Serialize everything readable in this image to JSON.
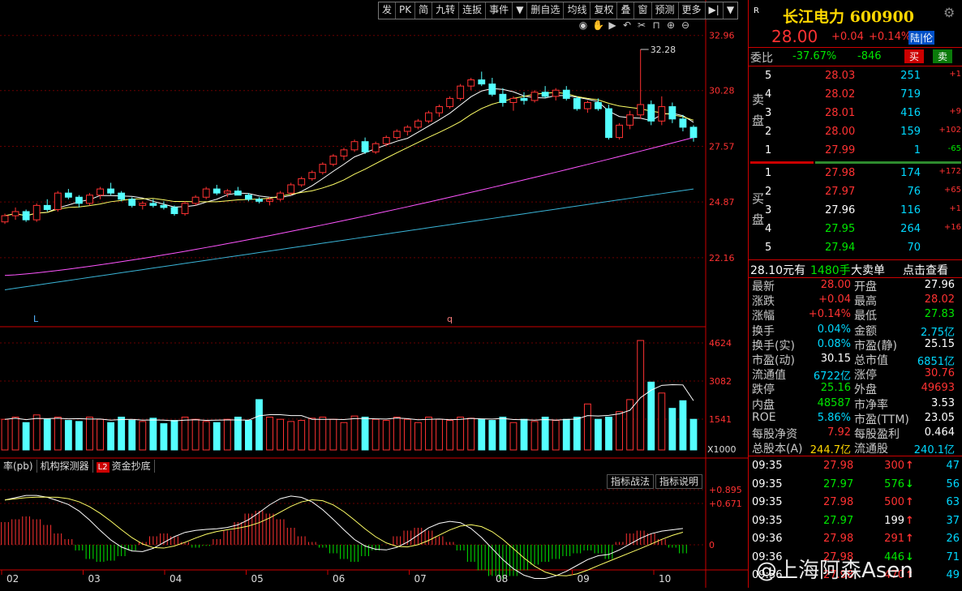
{
  "toolbar": [
    "发",
    "PK",
    "简",
    "九转",
    "连扳",
    "事件",
    "▼",
    "删自选",
    "均线",
    "复权",
    "叠",
    "窗",
    "预测",
    "更多",
    "▶|",
    "▼"
  ],
  "chart_data": {
    "type": "candlestick",
    "price_axis": [
      "32.96",
      "30.28",
      "27.57",
      "24.87",
      "22.16"
    ],
    "price_ylim": [
      20.5,
      33.5
    ],
    "peak_label": "32.28",
    "marks": [
      "L",
      "q"
    ],
    "volume_axis": [
      "4624",
      "3082",
      "1541",
      "X1000"
    ],
    "macd_axis": [
      "+0.895",
      "+0.671",
      "0"
    ],
    "months": [
      "02",
      "03",
      "04",
      "05",
      "06",
      "07",
      "08",
      "09",
      "10"
    ],
    "candles": [
      [
        23.9,
        24.3,
        23.8,
        24.2
      ],
      [
        24.2,
        24.6,
        24.0,
        24.4
      ],
      [
        24.4,
        24.5,
        23.9,
        24.0
      ],
      [
        24.0,
        24.8,
        23.9,
        24.7
      ],
      [
        24.7,
        25.0,
        24.4,
        24.5
      ],
      [
        24.5,
        25.4,
        24.4,
        25.3
      ],
      [
        25.3,
        25.5,
        25.0,
        25.1
      ],
      [
        25.1,
        25.2,
        24.6,
        24.8
      ],
      [
        24.8,
        25.3,
        24.7,
        25.2
      ],
      [
        25.2,
        25.6,
        25.0,
        25.5
      ],
      [
        25.5,
        25.8,
        25.2,
        25.3
      ],
      [
        25.3,
        25.4,
        24.9,
        25.0
      ],
      [
        25.0,
        25.1,
        24.6,
        24.7
      ],
      [
        24.7,
        24.9,
        24.5,
        24.8
      ],
      [
        24.8,
        25.0,
        24.6,
        24.7
      ],
      [
        24.7,
        24.9,
        24.5,
        24.6
      ],
      [
        24.6,
        24.7,
        24.2,
        24.3
      ],
      [
        24.3,
        24.9,
        24.2,
        24.8
      ],
      [
        24.8,
        25.2,
        24.7,
        25.1
      ],
      [
        25.1,
        25.6,
        25.0,
        25.5
      ],
      [
        25.5,
        25.7,
        25.2,
        25.3
      ],
      [
        25.3,
        25.5,
        25.1,
        25.4
      ],
      [
        25.4,
        25.6,
        25.2,
        25.2
      ],
      [
        25.2,
        25.3,
        24.9,
        25.0
      ],
      [
        25.0,
        25.1,
        24.8,
        24.9
      ],
      [
        24.9,
        25.1,
        24.7,
        25.0
      ],
      [
        25.0,
        25.4,
        24.9,
        25.3
      ],
      [
        25.3,
        25.8,
        25.2,
        25.7
      ],
      [
        25.7,
        26.1,
        25.6,
        26.0
      ],
      [
        26.0,
        26.4,
        25.9,
        26.3
      ],
      [
        26.3,
        26.8,
        26.2,
        26.7
      ],
      [
        26.7,
        27.2,
        26.6,
        27.1
      ],
      [
        27.1,
        27.5,
        26.9,
        27.4
      ],
      [
        27.4,
        27.9,
        27.3,
        27.8
      ],
      [
        27.8,
        28.0,
        27.2,
        27.3
      ],
      [
        27.3,
        27.8,
        27.2,
        27.7
      ],
      [
        27.7,
        28.1,
        27.6,
        28.0
      ],
      [
        28.0,
        28.4,
        27.9,
        28.3
      ],
      [
        28.3,
        28.6,
        28.1,
        28.5
      ],
      [
        28.5,
        28.9,
        28.4,
        28.8
      ],
      [
        28.8,
        29.3,
        28.7,
        29.2
      ],
      [
        29.2,
        29.6,
        29.0,
        29.5
      ],
      [
        29.5,
        30.0,
        29.4,
        29.9
      ],
      [
        29.9,
        30.6,
        29.8,
        30.5
      ],
      [
        30.5,
        30.9,
        30.3,
        30.8
      ],
      [
        30.8,
        31.2,
        30.5,
        30.6
      ],
      [
        30.6,
        30.9,
        30.0,
        30.1
      ],
      [
        30.1,
        30.4,
        29.5,
        29.7
      ],
      [
        29.7,
        30.0,
        29.3,
        29.9
      ],
      [
        29.9,
        30.2,
        29.6,
        29.8
      ],
      [
        29.8,
        30.3,
        29.7,
        30.2
      ],
      [
        30.2,
        30.5,
        29.9,
        30.0
      ],
      [
        30.0,
        30.4,
        29.8,
        30.3
      ],
      [
        30.3,
        30.5,
        29.8,
        29.9
      ],
      [
        29.9,
        30.0,
        29.3,
        29.4
      ],
      [
        29.4,
        29.8,
        29.2,
        29.7
      ],
      [
        29.7,
        29.9,
        29.3,
        29.4
      ],
      [
        29.4,
        29.6,
        27.9,
        28.0
      ],
      [
        28.0,
        28.7,
        27.9,
        28.6
      ],
      [
        28.6,
        29.3,
        28.4,
        29.1
      ],
      [
        29.1,
        32.28,
        28.9,
        29.6
      ],
      [
        29.6,
        29.8,
        28.6,
        28.8
      ],
      [
        28.8,
        30.0,
        28.6,
        29.5
      ],
      [
        29.5,
        29.7,
        28.7,
        28.9
      ],
      [
        28.9,
        29.1,
        28.3,
        28.5
      ],
      [
        28.5,
        28.6,
        27.8,
        28.0
      ]
    ],
    "volumes": [
      0.28,
      0.3,
      0.25,
      0.32,
      0.28,
      0.3,
      0.27,
      0.26,
      0.3,
      0.28,
      0.25,
      0.3,
      0.27,
      0.26,
      0.29,
      0.24,
      0.27,
      0.3,
      0.28,
      0.26,
      0.25,
      0.28,
      0.3,
      0.27,
      0.46,
      0.3,
      0.28,
      0.26,
      0.27,
      0.29,
      0.3,
      0.28,
      0.25,
      0.31,
      0.3,
      0.28,
      0.27,
      0.3,
      0.28,
      0.25,
      0.3,
      0.28,
      0.27,
      0.3,
      0.29,
      0.28,
      0.27,
      0.3,
      0.25,
      0.28,
      0.26,
      0.3,
      0.27,
      0.28,
      0.3,
      0.42,
      0.28,
      0.3,
      0.35,
      0.46,
      1.0,
      0.62,
      0.52,
      0.38,
      0.45,
      0.28
    ],
    "macd_hist": [
      0.4,
      0.45,
      0.5,
      0.45,
      0.35,
      0.2,
      0.1,
      -0.1,
      -0.25,
      -0.3,
      -0.28,
      -0.2,
      -0.1,
      0.05,
      0.15,
      0.2,
      0.15,
      0.05,
      -0.05,
      -0.02,
      0.1,
      0.25,
      0.4,
      0.55,
      0.6,
      0.55,
      0.45,
      0.3,
      0.15,
      0.05,
      -0.05,
      -0.15,
      -0.25,
      -0.3,
      -0.2,
      -0.1,
      0.0,
      0.15,
      0.25,
      0.3,
      0.25,
      0.15,
      0.05,
      -0.1,
      -0.3,
      -0.45,
      -0.55,
      -0.6,
      -0.55,
      -0.45,
      -0.35,
      -0.3,
      -0.25,
      -0.2,
      -0.15,
      -0.1,
      -0.15,
      -0.25,
      0.05,
      0.2,
      0.25,
      0.2,
      0.1,
      -0.05,
      -0.15
    ]
  },
  "sub_tabs": [
    "率(pb)",
    "机构探测器",
    "L2",
    "资金抄底"
  ],
  "indicator_buttons": [
    "指标战法",
    "指标说明"
  ],
  "stock": {
    "badge": "R",
    "name": "长江电力 600900",
    "price": "28.00",
    "change": "+0.04",
    "pct": "+0.14%",
    "tag": "陆|伦"
  },
  "commission": {
    "label": "委比",
    "ratio": "-37.67%",
    "diff": "-846",
    "buy": "买",
    "sell": "卖"
  },
  "sell_label": "卖盘",
  "buy_label": "买盘",
  "asks": [
    {
      "lvl": "5",
      "price": "28.03",
      "vol": "251",
      "chg": "+1"
    },
    {
      "lvl": "4",
      "price": "28.02",
      "vol": "719",
      "chg": ""
    },
    {
      "lvl": "3",
      "price": "28.01",
      "vol": "416",
      "chg": "+9"
    },
    {
      "lvl": "2",
      "price": "28.00",
      "vol": "159",
      "chg": "+102"
    },
    {
      "lvl": "1",
      "price": "27.99",
      "vol": "1",
      "chg": "-65"
    }
  ],
  "bids": [
    {
      "lvl": "1",
      "price": "27.98",
      "vol": "174",
      "chg": "+172"
    },
    {
      "lvl": "2",
      "price": "27.97",
      "vol": "76",
      "chg": "+65"
    },
    {
      "lvl": "3",
      "price": "27.96",
      "vol": "116",
      "chg": "+1"
    },
    {
      "lvl": "4",
      "price": "27.95",
      "vol": "264",
      "chg": "+16"
    },
    {
      "lvl": "5",
      "price": "27.94",
      "vol": "70",
      "chg": ""
    }
  ],
  "big_order": {
    "price": "28.10元有",
    "vol": "1480手",
    "label": "大卖单",
    "link": "点击查看"
  },
  "quote": [
    [
      "最新",
      "28.00",
      "开盘",
      "27.96"
    ],
    [
      "涨跌",
      "+0.04",
      "最高",
      "28.02"
    ],
    [
      "涨幅",
      "+0.14%",
      "最低",
      "27.83"
    ],
    [
      "换手",
      "0.04%",
      "金额",
      "2.75亿"
    ],
    [
      "换手(实)",
      "0.08%",
      "市盈(静)",
      "25.15"
    ],
    [
      "市盈(动)",
      "30.15",
      "总市值",
      "6851亿"
    ],
    [
      "流通值",
      "6722亿",
      "涨停",
      "30.76"
    ],
    [
      "跌停",
      "25.16",
      "外盘",
      "49693"
    ],
    [
      "内盘",
      "48587",
      "市净率",
      "3.53"
    ],
    [
      "ROE",
      "5.86%",
      "市盈(TTM)",
      "23.05"
    ],
    [
      "每股净资",
      "7.92",
      "每股盈利",
      "0.464"
    ],
    [
      "总股本(A)",
      "244.7亿",
      "流通股",
      "240.1亿"
    ]
  ],
  "ticks": [
    {
      "time": "09:35",
      "price": "27.98",
      "vol": "300",
      "dir": "↑",
      "n": "47"
    },
    {
      "time": "09:35",
      "price": "27.97",
      "vol": "576",
      "dir": "↓",
      "n": "56"
    },
    {
      "time": "09:35",
      "price": "27.98",
      "vol": "500",
      "dir": "↑",
      "n": "63"
    },
    {
      "time": "09:35",
      "price": "27.97",
      "vol": "199",
      "dir": "↑",
      "n": "37"
    },
    {
      "time": "09:36",
      "price": "27.98",
      "vol": "291",
      "dir": "↑",
      "n": "26"
    },
    {
      "time": "09:36",
      "price": "27.98",
      "vol": "446",
      "dir": "↓",
      "n": "71"
    },
    {
      "time": "09:36",
      "price": "27.98",
      "vol": "470",
      "dir": "↑",
      "n": "49"
    }
  ],
  "watermark": "@上海阿森Asen"
}
